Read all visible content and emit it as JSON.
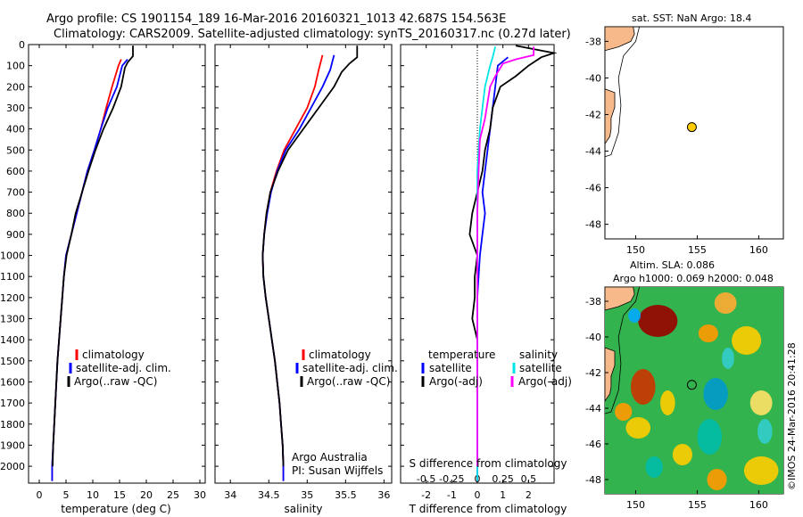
{
  "header": {
    "line1": "Argo profile: CS 1901154_189 16-Mar-2016 20160321_1013 42.687S 154.563E",
    "line2": "Climatology: CARS2009. Satellite-adjusted climatology: synTS_20160317.nc (0.27d later)"
  },
  "colors": {
    "climatology": "#ff0000",
    "satellite": "#0000ff",
    "argo": "#000000",
    "sat_salinity": "#00e5e5",
    "argo_salinity_adj": "#ff00ff",
    "land": "#f7b98a",
    "argo_marker": "#ffcc00"
  },
  "chart_data": [
    {
      "type": "line",
      "name": "temperature",
      "xlabel": "temperature (deg C)",
      "xlim": [
        -2,
        31
      ],
      "xticks": [
        0,
        5,
        10,
        15,
        20,
        25,
        30
      ],
      "ylim": [
        2080,
        0
      ],
      "yticks": [
        0,
        100,
        200,
        300,
        400,
        500,
        600,
        700,
        800,
        900,
        1000,
        1100,
        1200,
        1300,
        1400,
        1500,
        1600,
        1700,
        1800,
        1900,
        2000
      ],
      "legend": [
        "climatology",
        "satellite-adj. clim.",
        "Argo(..raw -QC)"
      ],
      "series": [
        {
          "name": "climatology",
          "color": "#ff0000",
          "points": [
            [
              15.3,
              70
            ],
            [
              14.8,
              100
            ],
            [
              13.6,
              200
            ],
            [
              12.5,
              300
            ],
            [
              11.5,
              400
            ],
            [
              10.3,
              500
            ],
            [
              9.0,
              600
            ],
            [
              8.0,
              700
            ],
            [
              7.0,
              800
            ],
            [
              6.0,
              900
            ],
            [
              5.0,
              1000
            ],
            [
              4.6,
              1100
            ],
            [
              4.3,
              1200
            ],
            [
              4.0,
              1300
            ],
            [
              3.7,
              1400
            ],
            [
              3.4,
              1500
            ],
            [
              3.2,
              1600
            ],
            [
              3.0,
              1700
            ],
            [
              2.8,
              1800
            ],
            [
              2.6,
              1900
            ],
            [
              2.4,
              2000
            ],
            [
              2.4,
              2070
            ]
          ]
        },
        {
          "name": "satellite-adj. clim.",
          "color": "#0000ff",
          "points": [
            [
              16.5,
              70
            ],
            [
              15.5,
              100
            ],
            [
              14.5,
              200
            ],
            [
              12.8,
              300
            ],
            [
              11.5,
              400
            ],
            [
              10.3,
              500
            ],
            [
              9.0,
              600
            ],
            [
              8.0,
              700
            ],
            [
              7.0,
              800
            ],
            [
              6.0,
              900
            ],
            [
              5.0,
              1000
            ],
            [
              4.6,
              1100
            ],
            [
              4.3,
              1200
            ],
            [
              4.0,
              1300
            ],
            [
              3.7,
              1400
            ],
            [
              3.4,
              1500
            ],
            [
              3.2,
              1600
            ],
            [
              3.0,
              1700
            ],
            [
              2.8,
              1800
            ],
            [
              2.6,
              1900
            ],
            [
              2.4,
              2000
            ],
            [
              2.4,
              2070
            ]
          ]
        },
        {
          "name": "Argo(..raw -QC)",
          "color": "#000000",
          "points": [
            [
              17.5,
              5
            ],
            [
              17.5,
              55
            ],
            [
              16.5,
              85
            ],
            [
              16.0,
              110
            ],
            [
              15.3,
              200
            ],
            [
              13.8,
              300
            ],
            [
              12.0,
              400
            ],
            [
              10.5,
              500
            ],
            [
              9.2,
              600
            ],
            [
              8.0,
              700
            ],
            [
              6.8,
              800
            ],
            [
              6.0,
              900
            ],
            [
              5.1,
              1000
            ],
            [
              4.6,
              1100
            ],
            [
              4.3,
              1200
            ],
            [
              4.0,
              1300
            ],
            [
              3.7,
              1400
            ],
            [
              3.4,
              1500
            ],
            [
              3.2,
              1600
            ],
            [
              3.0,
              1700
            ],
            [
              2.8,
              1800
            ],
            [
              2.6,
              1900
            ],
            [
              2.5,
              2000
            ]
          ]
        }
      ]
    },
    {
      "type": "line",
      "name": "salinity",
      "xlabel": "salinity",
      "xlim": [
        33.8,
        36.1
      ],
      "xticks": [
        34,
        34.5,
        35,
        35.5,
        36
      ],
      "ylim": [
        2080,
        0
      ],
      "legend": [
        "climatology",
        "satellite-adj. clim.",
        "Argo(..raw -QC)"
      ],
      "annotations": [
        "Argo Australia",
        "PI: Susan Wijffels"
      ],
      "series": [
        {
          "name": "climatology",
          "color": "#ff0000",
          "points": [
            [
              35.2,
              50
            ],
            [
              35.15,
              120
            ],
            [
              35.1,
              200
            ],
            [
              35.0,
              300
            ],
            [
              34.85,
              400
            ],
            [
              34.7,
              500
            ],
            [
              34.6,
              600
            ],
            [
              34.52,
              700
            ],
            [
              34.47,
              800
            ],
            [
              34.44,
              900
            ],
            [
              34.42,
              1000
            ],
            [
              34.43,
              1100
            ],
            [
              34.46,
              1200
            ],
            [
              34.5,
              1300
            ],
            [
              34.54,
              1400
            ],
            [
              34.58,
              1500
            ],
            [
              34.61,
              1600
            ],
            [
              34.64,
              1700
            ],
            [
              34.66,
              1800
            ],
            [
              34.68,
              1900
            ],
            [
              34.69,
              2000
            ],
            [
              34.69,
              2070
            ]
          ]
        },
        {
          "name": "satellite-adj. clim.",
          "color": "#0000ff",
          "points": [
            [
              35.35,
              50
            ],
            [
              35.3,
              120
            ],
            [
              35.2,
              200
            ],
            [
              35.05,
              300
            ],
            [
              34.9,
              400
            ],
            [
              34.72,
              500
            ],
            [
              34.61,
              600
            ],
            [
              34.53,
              700
            ],
            [
              34.48,
              800
            ],
            [
              34.44,
              900
            ],
            [
              34.42,
              1000
            ],
            [
              34.43,
              1100
            ],
            [
              34.46,
              1200
            ],
            [
              34.5,
              1300
            ],
            [
              34.54,
              1400
            ],
            [
              34.58,
              1500
            ],
            [
              34.61,
              1600
            ],
            [
              34.64,
              1700
            ],
            [
              34.66,
              1800
            ],
            [
              34.68,
              1900
            ],
            [
              34.69,
              2000
            ],
            [
              34.69,
              2070
            ]
          ]
        },
        {
          "name": "Argo(..raw -QC)",
          "color": "#000000",
          "points": [
            [
              35.65,
              5
            ],
            [
              35.65,
              60
            ],
            [
              35.55,
              90
            ],
            [
              35.45,
              130
            ],
            [
              35.35,
              200
            ],
            [
              35.15,
              300
            ],
            [
              34.95,
              400
            ],
            [
              34.75,
              500
            ],
            [
              34.62,
              600
            ],
            [
              34.52,
              700
            ],
            [
              34.47,
              800
            ],
            [
              34.44,
              900
            ],
            [
              34.42,
              1000
            ],
            [
              34.43,
              1100
            ],
            [
              34.46,
              1200
            ],
            [
              34.5,
              1300
            ],
            [
              34.54,
              1400
            ],
            [
              34.58,
              1500
            ],
            [
              34.61,
              1600
            ],
            [
              34.64,
              1700
            ],
            [
              34.66,
              1800
            ],
            [
              34.68,
              1900
            ],
            [
              34.69,
              2000
            ]
          ]
        }
      ]
    },
    {
      "type": "line",
      "name": "differences",
      "xlabel": "T difference from climatology",
      "xlabel_top": "S difference from climatology",
      "xticks_T": [
        -2,
        -1,
        0,
        1,
        2
      ],
      "xticks_S": [
        -0.5,
        -0.25,
        0,
        0.25,
        0.5
      ],
      "xlim": [
        -3,
        3
      ],
      "ylim": [
        2080,
        0
      ],
      "legend_temperature": [
        "temperature",
        "satellite",
        "Argo(-adj)"
      ],
      "legend_salinity": [
        "salinity",
        "satellite",
        "Argo(-adj)"
      ],
      "series": [
        {
          "name": "temperature satellite",
          "color": "#0000ff",
          "points": [
            [
              1.2,
              60
            ],
            [
              0.8,
              100
            ],
            [
              0.7,
              200
            ],
            [
              0.6,
              300
            ],
            [
              0.5,
              400
            ],
            [
              0.4,
              500
            ],
            [
              0.3,
              600
            ],
            [
              0.2,
              700
            ],
            [
              0.3,
              800
            ],
            [
              0.2,
              900
            ],
            [
              0.1,
              1000
            ],
            [
              0.05,
              1100
            ],
            [
              0.0,
              1200
            ],
            [
              0.0,
              1400
            ],
            [
              0.0,
              1600
            ],
            [
              0.0,
              1800
            ],
            [
              0.0,
              2000
            ],
            [
              0.0,
              2070
            ]
          ]
        },
        {
          "name": "temperature Argo(-adj)",
          "color": "#000000",
          "points": [
            [
              1.5,
              5
            ],
            [
              3.0,
              40
            ],
            [
              2.5,
              60
            ],
            [
              2.0,
              100
            ],
            [
              1.5,
              150
            ],
            [
              0.9,
              200
            ],
            [
              0.6,
              300
            ],
            [
              0.5,
              400
            ],
            [
              0.3,
              500
            ],
            [
              0.2,
              600
            ],
            [
              0.0,
              700
            ],
            [
              -0.2,
              800
            ],
            [
              -0.3,
              900
            ],
            [
              0.0,
              1000
            ],
            [
              -0.1,
              1100
            ],
            [
              -0.1,
              1200
            ],
            [
              -0.2,
              1300
            ],
            [
              0.0,
              1400
            ],
            [
              0.0,
              1600
            ],
            [
              0.0,
              1800
            ],
            [
              0.0,
              2000
            ]
          ]
        },
        {
          "name": "salinity satellite",
          "color": "#00e5e5",
          "points": [
            [
              0.7,
              10
            ],
            [
              0.6,
              60
            ],
            [
              0.5,
              100
            ],
            [
              0.3,
              200
            ],
            [
              0.2,
              300
            ],
            [
              0.1,
              400
            ],
            [
              0.05,
              500
            ],
            [
              0.0,
              600
            ],
            [
              0.0,
              800
            ],
            [
              0.0,
              1000
            ],
            [
              0.0,
              1200
            ],
            [
              0.0,
              1400
            ],
            [
              0.0,
              1600
            ],
            [
              0.0,
              1800
            ],
            [
              0.0,
              2000
            ],
            [
              0.0,
              2070
            ]
          ]
        },
        {
          "name": "salinity Argo(-adj)",
          "color": "#ff00ff",
          "points": [
            [
              2.2,
              10
            ],
            [
              2.2,
              50
            ],
            [
              1.5,
              70
            ],
            [
              1.0,
              90
            ],
            [
              0.7,
              150
            ],
            [
              0.5,
              200
            ],
            [
              0.3,
              350
            ],
            [
              0.1,
              450
            ],
            [
              0.05,
              600
            ],
            [
              0.0,
              800
            ],
            [
              0.0,
              2000
            ]
          ]
        }
      ]
    }
  ],
  "map_sst": {
    "title": "sat. SST: NaN Argo: 18.4",
    "xticks": [
      150,
      155,
      160
    ],
    "yticks": [
      -38,
      -40,
      -42,
      -44,
      -46,
      -48
    ],
    "xlim": [
      147.5,
      162
    ],
    "ylim": [
      -48.8,
      -37.2
    ],
    "argo_lon": 154.563,
    "argo_lat": -42.687
  },
  "map_sla": {
    "title1": "Altim. SLA: 0.086",
    "title2": "Argo h1000: 0.069 h2000: 0.048",
    "xticks": [
      150,
      155,
      160
    ],
    "yticks": [
      -38,
      -40,
      -42,
      -44,
      -46,
      -48
    ],
    "xlim": [
      147.5,
      162
    ],
    "ylim": [
      -48.8,
      -37.2
    ]
  },
  "footer_stamp": "©IMOS 24-Mar-2016 20:41:28"
}
